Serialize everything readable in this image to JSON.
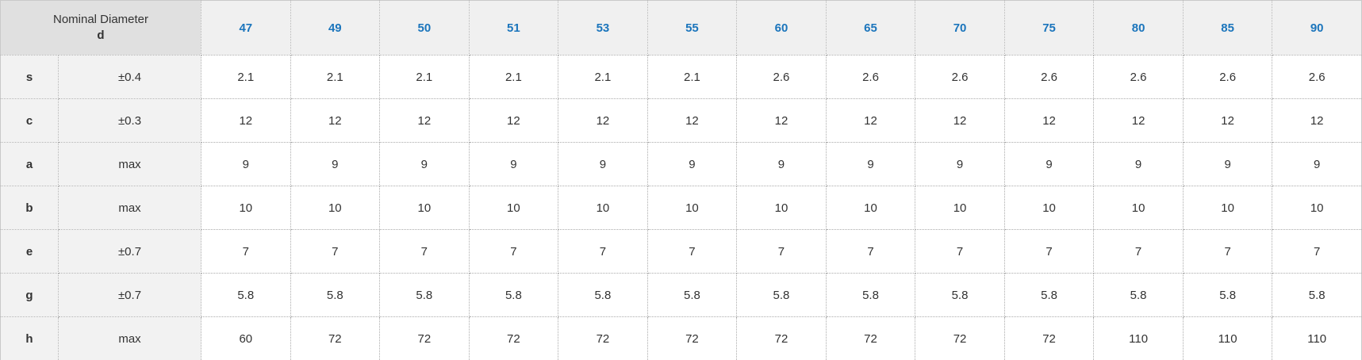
{
  "colors": {
    "header_text": "#1b75bc",
    "corner_bg": "#e0e0e0",
    "header_bg": "#f0f0f0",
    "label_bg": "#f2f2f2",
    "body_text": "#333333",
    "grid_border": "#ababab",
    "outer_border": "#c9c9c9"
  },
  "chart_data": {
    "type": "table",
    "corner_header": {
      "line1": "Nominal Diameter",
      "line2": "d"
    },
    "column_headers": [
      "47",
      "49",
      "50",
      "51",
      "53",
      "55",
      "60",
      "65",
      "70",
      "75",
      "80",
      "85",
      "90"
    ],
    "rows": [
      {
        "parameter": "s",
        "tolerance": "±0.4",
        "values": [
          "2.1",
          "2.1",
          "2.1",
          "2.1",
          "2.1",
          "2.1",
          "2.6",
          "2.6",
          "2.6",
          "2.6",
          "2.6",
          "2.6",
          "2.6"
        ]
      },
      {
        "parameter": "c",
        "tolerance": "±0.3",
        "values": [
          "12",
          "12",
          "12",
          "12",
          "12",
          "12",
          "12",
          "12",
          "12",
          "12",
          "12",
          "12",
          "12"
        ]
      },
      {
        "parameter": "a",
        "tolerance": "max",
        "values": [
          "9",
          "9",
          "9",
          "9",
          "9",
          "9",
          "9",
          "9",
          "9",
          "9",
          "9",
          "9",
          "9"
        ]
      },
      {
        "parameter": "b",
        "tolerance": "max",
        "values": [
          "10",
          "10",
          "10",
          "10",
          "10",
          "10",
          "10",
          "10",
          "10",
          "10",
          "10",
          "10",
          "10"
        ]
      },
      {
        "parameter": "e",
        "tolerance": "±0.7",
        "values": [
          "7",
          "7",
          "7",
          "7",
          "7",
          "7",
          "7",
          "7",
          "7",
          "7",
          "7",
          "7",
          "7"
        ]
      },
      {
        "parameter": "g",
        "tolerance": "±0.7",
        "values": [
          "5.8",
          "5.8",
          "5.8",
          "5.8",
          "5.8",
          "5.8",
          "5.8",
          "5.8",
          "5.8",
          "5.8",
          "5.8",
          "5.8",
          "5.8"
        ]
      },
      {
        "parameter": "h",
        "tolerance": "max",
        "values": [
          "60",
          "72",
          "72",
          "72",
          "72",
          "72",
          "72",
          "72",
          "72",
          "72",
          "110",
          "110",
          "110"
        ]
      }
    ]
  }
}
